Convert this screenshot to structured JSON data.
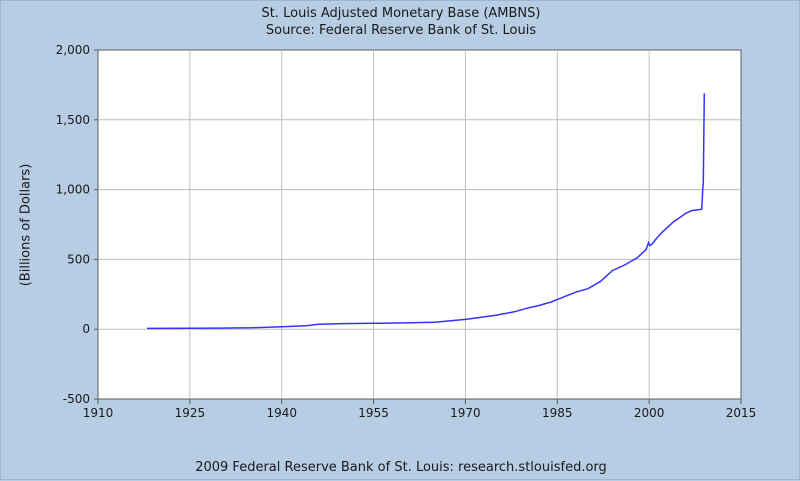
{
  "chart_data": {
    "type": "line",
    "title": "St. Louis Adjusted Monetary Base (AMBNS)",
    "subtitle": "Source: Federal Reserve Bank of St. Louis",
    "footer": "2009 Federal Reserve Bank of St. Louis: research.stlouisfed.org",
    "xlabel": "",
    "ylabel": "(Billions of Dollars)",
    "xlim": [
      1910,
      2015
    ],
    "ylim": [
      -500,
      2000
    ],
    "x_ticks": [
      1910,
      1925,
      1940,
      1955,
      1970,
      1985,
      2000,
      2015
    ],
    "y_ticks": [
      -500,
      0,
      500,
      1000,
      1500,
      2000
    ],
    "y_tick_labels": [
      "-500",
      "0",
      "500",
      "1,000",
      "1,500",
      "2,000"
    ],
    "grid": true,
    "series": [
      {
        "line_color": "#3333ff",
        "x": [
          1918,
          1925,
          1930,
          1935,
          1940,
          1944,
          1946,
          1950,
          1955,
          1960,
          1965,
          1970,
          1975,
          1978,
          1980,
          1982,
          1984,
          1986,
          1988,
          1990,
          1992,
          1994,
          1996,
          1998,
          1999.5,
          1999.9,
          2000.1,
          2000.5,
          2001,
          2002,
          2003,
          2004,
          2005,
          2006,
          2007,
          2008.0,
          2008.6,
          2008.75,
          2008.85,
          2008.95,
          2009.0
        ],
        "y": [
          6,
          7,
          8,
          10,
          18,
          25,
          35,
          40,
          42,
          45,
          50,
          70,
          100,
          125,
          150,
          170,
          195,
          230,
          265,
          290,
          340,
          420,
          460,
          510,
          570,
          620,
          600,
          610,
          640,
          690,
          730,
          770,
          800,
          830,
          850,
          855,
          860,
          1000,
          1050,
          1500,
          1690
        ]
      }
    ]
  }
}
